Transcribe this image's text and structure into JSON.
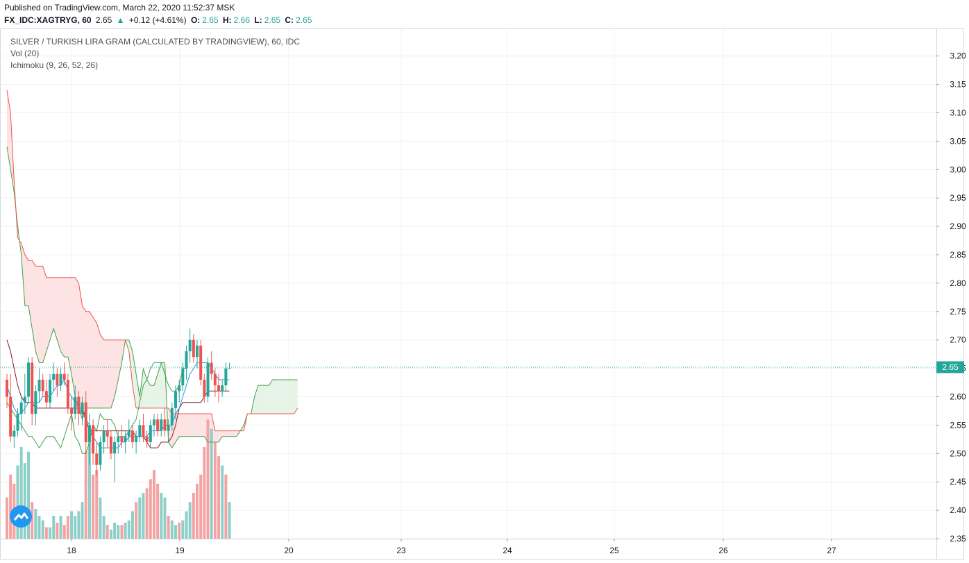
{
  "header": {
    "published": "Published on TradingView.com, March 22, 2020 11:52:37 MSK",
    "symbol": "FX_IDC:XAGTRYG, 60",
    "last": "2.65",
    "change": "+0.12 (+4.61%)",
    "o_label": "O:",
    "o_value": "2.65",
    "h_label": "H:",
    "h_value": "2.66",
    "l_label": "L:",
    "l_value": "2.65",
    "c_label": "C:",
    "c_value": "2.65"
  },
  "legend": {
    "title": "SILVER / TURKISH LIRA GRAM (CALCULATED BY TRADINGVIEW), 60, IDC",
    "vol": "Vol (20)",
    "ichimoku": "Ichimoku (9, 26, 52, 26)"
  },
  "colors": {
    "up": "#26a69a",
    "down": "#ef5350",
    "vol_up": "#8fcfc9",
    "vol_down": "#f5a3a2",
    "conversion": "#2196f3",
    "base": "#801922",
    "span_a": "#43a047",
    "span_b": "#ef5350",
    "cloud_red": "#fde3e3",
    "cloud_green": "#e6f4e7",
    "lagging": "#43a047",
    "price_line": "#26a69a"
  },
  "chart_data": {
    "type": "candlestick",
    "ylim": [
      2.345,
      3.23
    ],
    "y_ticks": [
      "3.20",
      "3.15",
      "3.10",
      "3.05",
      "3.00",
      "2.95",
      "2.90",
      "2.85",
      "2.80",
      "2.75",
      "2.70",
      "2.65",
      "2.60",
      "2.55",
      "2.50",
      "2.45",
      "2.40",
      "2.35"
    ],
    "x_ticks": [
      "18",
      "19",
      "20",
      "23",
      "24",
      "25",
      "26",
      "27"
    ],
    "last_price_label": "2.65",
    "last_price": 2.652,
    "candles": [
      [
        2.63,
        2.64,
        2.58,
        2.6
      ],
      [
        2.6,
        2.64,
        2.52,
        2.53
      ],
      [
        2.53,
        2.55,
        2.51,
        2.54
      ],
      [
        2.54,
        2.58,
        2.53,
        2.57
      ],
      [
        2.57,
        2.6,
        2.54,
        2.59
      ],
      [
        2.59,
        2.64,
        2.57,
        2.6
      ],
      [
        2.6,
        2.67,
        2.59,
        2.66
      ],
      [
        2.66,
        2.67,
        2.55,
        2.57
      ],
      [
        2.57,
        2.62,
        2.55,
        2.61
      ],
      [
        2.61,
        2.65,
        2.59,
        2.63
      ],
      [
        2.63,
        2.64,
        2.6,
        2.61
      ],
      [
        2.61,
        2.63,
        2.58,
        2.59
      ],
      [
        2.59,
        2.64,
        2.58,
        2.63
      ],
      [
        2.63,
        2.66,
        2.61,
        2.64
      ],
      [
        2.64,
        2.65,
        2.6,
        2.62
      ],
      [
        2.62,
        2.65,
        2.61,
        2.64
      ],
      [
        2.64,
        2.66,
        2.62,
        2.63
      ],
      [
        2.63,
        2.64,
        2.57,
        2.58
      ],
      [
        2.58,
        2.6,
        2.54,
        2.57
      ],
      [
        2.57,
        2.62,
        2.56,
        2.6
      ],
      [
        2.6,
        2.61,
        2.55,
        2.57
      ],
      [
        2.57,
        2.6,
        2.55,
        2.59
      ],
      [
        2.59,
        2.61,
        2.5,
        2.52
      ],
      [
        2.52,
        2.57,
        2.48,
        2.55
      ],
      [
        2.55,
        2.56,
        2.48,
        2.5
      ],
      [
        2.5,
        2.52,
        2.46,
        2.48
      ],
      [
        2.48,
        2.53,
        2.47,
        2.52
      ],
      [
        2.52,
        2.55,
        2.5,
        2.54
      ],
      [
        2.54,
        2.56,
        2.51,
        2.53
      ],
      [
        2.53,
        2.54,
        2.49,
        2.5
      ],
      [
        2.5,
        2.53,
        2.45,
        2.52
      ],
      [
        2.52,
        2.54,
        2.5,
        2.53
      ],
      [
        2.53,
        2.55,
        2.51,
        2.52
      ],
      [
        2.52,
        2.54,
        2.5,
        2.53
      ],
      [
        2.53,
        2.56,
        2.52,
        2.54
      ],
      [
        2.54,
        2.55,
        2.51,
        2.52
      ],
      [
        2.52,
        2.54,
        2.5,
        2.53
      ],
      [
        2.53,
        2.56,
        2.52,
        2.55
      ],
      [
        2.55,
        2.57,
        2.52,
        2.53
      ],
      [
        2.53,
        2.54,
        2.51,
        2.52
      ],
      [
        2.52,
        2.56,
        2.51,
        2.55
      ],
      [
        2.55,
        2.57,
        2.53,
        2.56
      ],
      [
        2.56,
        2.57,
        2.53,
        2.54
      ],
      [
        2.54,
        2.57,
        2.53,
        2.56
      ],
      [
        2.56,
        2.58,
        2.53,
        2.54
      ],
      [
        2.54,
        2.56,
        2.52,
        2.55
      ],
      [
        2.55,
        2.59,
        2.54,
        2.58
      ],
      [
        2.58,
        2.62,
        2.56,
        2.61
      ],
      [
        2.61,
        2.63,
        2.59,
        2.62
      ],
      [
        2.62,
        2.66,
        2.61,
        2.65
      ],
      [
        2.65,
        2.69,
        2.63,
        2.68
      ],
      [
        2.68,
        2.72,
        2.66,
        2.7
      ],
      [
        2.7,
        2.71,
        2.66,
        2.67
      ],
      [
        2.67,
        2.7,
        2.65,
        2.69
      ],
      [
        2.69,
        2.7,
        2.62,
        2.63
      ],
      [
        2.63,
        2.64,
        2.59,
        2.6
      ],
      [
        2.6,
        2.67,
        2.59,
        2.66
      ],
      [
        2.66,
        2.68,
        2.63,
        2.64
      ],
      [
        2.64,
        2.65,
        2.6,
        2.62
      ],
      [
        2.62,
        2.64,
        2.59,
        2.61
      ],
      [
        2.61,
        2.63,
        2.6,
        2.62
      ],
      [
        2.62,
        2.66,
        2.61,
        2.65
      ],
      [
        2.65,
        2.66,
        2.65,
        2.65
      ]
    ],
    "volume": [
      [
        18,
        0
      ],
      [
        28,
        0
      ],
      [
        24,
        0
      ],
      [
        32,
        1
      ],
      [
        40,
        1
      ],
      [
        33,
        1
      ],
      [
        38,
        1
      ],
      [
        16,
        0
      ],
      [
        13,
        1
      ],
      [
        10,
        1
      ],
      [
        8,
        1
      ],
      [
        5,
        0
      ],
      [
        5,
        1
      ],
      [
        10,
        1
      ],
      [
        7,
        0
      ],
      [
        10,
        1
      ],
      [
        6,
        0
      ],
      [
        10,
        0
      ],
      [
        12,
        1
      ],
      [
        10,
        1
      ],
      [
        12,
        1
      ],
      [
        16,
        1
      ],
      [
        38,
        0
      ],
      [
        45,
        1
      ],
      [
        28,
        0
      ],
      [
        30,
        0
      ],
      [
        18,
        1
      ],
      [
        10,
        1
      ],
      [
        6,
        0
      ],
      [
        4,
        1
      ],
      [
        7,
        1
      ],
      [
        6,
        1
      ],
      [
        6,
        0
      ],
      [
        7,
        1
      ],
      [
        8,
        1
      ],
      [
        12,
        1
      ],
      [
        16,
        0
      ],
      [
        18,
        1
      ],
      [
        20,
        1
      ],
      [
        22,
        0
      ],
      [
        26,
        0
      ],
      [
        30,
        0
      ],
      [
        24,
        0
      ],
      [
        20,
        1
      ],
      [
        18,
        1
      ],
      [
        10,
        0
      ],
      [
        8,
        1
      ],
      [
        6,
        1
      ],
      [
        7,
        0
      ],
      [
        8,
        1
      ],
      [
        12,
        1
      ],
      [
        16,
        1
      ],
      [
        20,
        0
      ],
      [
        24,
        0
      ],
      [
        28,
        0
      ],
      [
        40,
        0
      ],
      [
        52,
        0
      ],
      [
        48,
        1
      ],
      [
        42,
        0
      ],
      [
        36,
        0
      ],
      [
        32,
        1
      ],
      [
        28,
        0
      ],
      [
        16,
        1
      ]
    ],
    "conversion_line": [
      2.62,
      2.6,
      2.58,
      2.57,
      2.57,
      2.58,
      2.59,
      2.59,
      2.59,
      2.59,
      2.6,
      2.6,
      2.6,
      2.61,
      2.62,
      2.62,
      2.63,
      2.61,
      2.6,
      2.59,
      2.58,
      2.57,
      2.56,
      2.55,
      2.53,
      2.52,
      2.51,
      2.51,
      2.51,
      2.51,
      2.51,
      2.51,
      2.52,
      2.52,
      2.53,
      2.53,
      2.53,
      2.53,
      2.53,
      2.53,
      2.54,
      2.54,
      2.54,
      2.54,
      2.55,
      2.55,
      2.55,
      2.57,
      2.58,
      2.6,
      2.62,
      2.64,
      2.65,
      2.66,
      2.66,
      2.66,
      2.66,
      2.65,
      2.64,
      2.63,
      2.63,
      2.63,
      2.63
    ],
    "base_line": [
      2.7,
      2.68,
      2.65,
      2.62,
      2.6,
      2.59,
      2.59,
      2.59,
      2.58,
      2.58,
      2.58,
      2.58,
      2.58,
      2.58,
      2.58,
      2.58,
      2.58,
      2.58,
      2.58,
      2.58,
      2.58,
      2.58,
      2.56,
      2.54,
      2.54,
      2.54,
      2.54,
      2.54,
      2.54,
      2.54,
      2.54,
      2.54,
      2.54,
      2.54,
      2.54,
      2.54,
      2.53,
      2.53,
      2.53,
      2.52,
      2.51,
      2.51,
      2.51,
      2.52,
      2.52,
      2.52,
      2.53,
      2.55,
      2.58,
      2.59,
      2.59,
      2.59,
      2.59,
      2.59,
      2.59,
      2.6,
      2.61,
      2.61,
      2.61,
      2.61,
      2.61,
      2.61,
      2.61
    ],
    "span_a": [
      3.04,
      3.0,
      2.96,
      2.9,
      2.85,
      2.76,
      2.76,
      2.72,
      2.68,
      2.66,
      2.66,
      2.68,
      2.7,
      2.72,
      2.7,
      2.68,
      2.67,
      2.67,
      2.64,
      2.6,
      2.58,
      2.56,
      2.58,
      2.58,
      2.58,
      2.58,
      2.58,
      2.58,
      2.58,
      2.58,
      2.6,
      2.63,
      2.66,
      2.7,
      2.7,
      2.68,
      2.64,
      2.6,
      2.65,
      2.63,
      2.62,
      2.62,
      2.64,
      2.66,
      2.66,
      2.52,
      2.51,
      2.52,
      2.53,
      2.53,
      2.53,
      2.53,
      2.53,
      2.53,
      2.53,
      2.53,
      2.52,
      2.52,
      2.52,
      2.52,
      2.53,
      2.53,
      2.53,
      2.53,
      2.53,
      2.54,
      2.55,
      2.57,
      2.57,
      2.6,
      2.62,
      2.62,
      2.62,
      2.62,
      2.63,
      2.63,
      2.63,
      2.63,
      2.63,
      2.63,
      2.63,
      2.63
    ],
    "span_b": [
      3.14,
      3.1,
      2.98,
      2.88,
      2.87,
      2.85,
      2.84,
      2.84,
      2.83,
      2.83,
      2.83,
      2.81,
      2.81,
      2.81,
      2.81,
      2.81,
      2.81,
      2.81,
      2.81,
      2.81,
      2.8,
      2.76,
      2.75,
      2.75,
      2.74,
      2.73,
      2.71,
      2.7,
      2.7,
      2.7,
      2.7,
      2.7,
      2.7,
      2.7,
      2.68,
      2.62,
      2.58,
      2.58,
      2.58,
      2.58,
      2.58,
      2.58,
      2.58,
      2.58,
      2.58,
      2.58,
      2.57,
      2.57,
      2.57,
      2.57,
      2.57,
      2.57,
      2.57,
      2.57,
      2.57,
      2.57,
      2.57,
      2.57,
      2.54,
      2.54,
      2.54,
      2.54,
      2.54,
      2.54,
      2.54,
      2.54,
      2.54,
      2.57,
      2.57,
      2.57,
      2.57,
      2.57,
      2.57,
      2.57,
      2.57,
      2.57,
      2.57,
      2.57,
      2.57,
      2.57,
      2.57,
      2.58
    ],
    "lagging_span": [
      2.59,
      2.58,
      2.57,
      2.56,
      2.55,
      2.54,
      2.53,
      2.53,
      2.52,
      2.51,
      2.52,
      2.53,
      2.53,
      2.53,
      2.52,
      2.51,
      2.53,
      2.55,
      2.57,
      2.53,
      2.52,
      2.5,
      2.5,
      2.52,
      2.55,
      2.54,
      2.57,
      2.56,
      2.56,
      2.56,
      2.55,
      2.53,
      2.53,
      2.53,
      2.54,
      2.55,
      2.56,
      2.59,
      2.62,
      2.63,
      2.65,
      2.66,
      2.66,
      2.66,
      2.64,
      2.62,
      2.61,
      2.61,
      2.62,
      2.65,
      2.65
    ]
  }
}
